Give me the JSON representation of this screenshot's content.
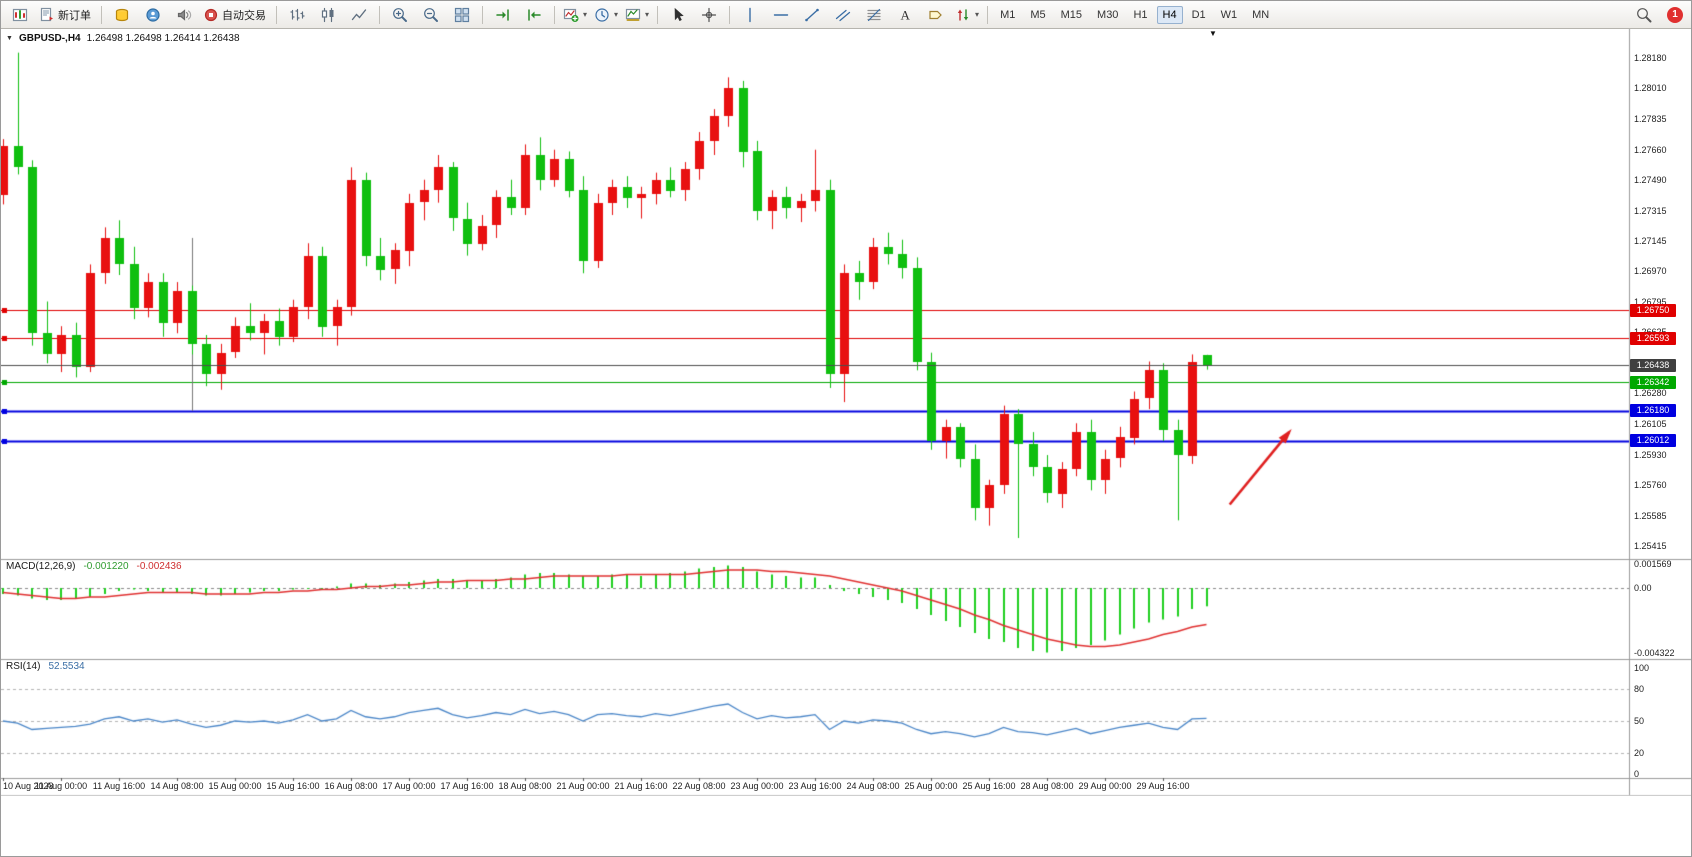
{
  "colors": {
    "accent_red": "#e00000",
    "accent_green": "#00a800",
    "accent_blue": "#0000e0",
    "current_line": "#4d4d4d",
    "panel_divider": "#9a9a9a"
  },
  "toolbar": {
    "groups": [
      {
        "items": [
          {
            "name": "charts-window-button",
            "icon": "charts-window-icon"
          },
          {
            "name": "new-order-button",
            "icon": "new-order-icon",
            "label": "新订单"
          }
        ]
      },
      {
        "items": [
          {
            "name": "history-center-button",
            "icon": "history-icon"
          },
          {
            "name": "community-button",
            "icon": "community-icon"
          },
          {
            "name": "alerts-button",
            "icon": "alerts-icon"
          },
          {
            "name": "auto-trading-button",
            "icon": "autotrade-icon",
            "label": "自动交易"
          }
        ]
      },
      {
        "items": [
          {
            "name": "bar-chart-button",
            "icon": "bar-chart-icon"
          },
          {
            "name": "candlestick-chart-button",
            "icon": "candlestick-chart-icon"
          },
          {
            "name": "line-chart-button",
            "icon": "line-chart-icon"
          }
        ]
      },
      {
        "items": [
          {
            "name": "zoom-in-button",
            "icon": "zoom-in-icon"
          },
          {
            "name": "zoom-out-button",
            "icon": "zoom-out-icon"
          },
          {
            "name": "tile-windows-button",
            "icon": "tile-windows-icon"
          }
        ]
      },
      {
        "items": [
          {
            "name": "auto-scroll-button",
            "icon": "auto-scroll-icon"
          },
          {
            "name": "chart-shift-button",
            "icon": "chart-shift-icon"
          }
        ]
      },
      {
        "items": [
          {
            "name": "indicators-button",
            "icon": "indicators-icon",
            "dropdown": true
          },
          {
            "name": "periods-button",
            "icon": "periods-icon",
            "dropdown": true
          },
          {
            "name": "templates-button",
            "icon": "templates-icon",
            "dropdown": true
          }
        ]
      },
      {
        "items": [
          {
            "name": "cursor-button",
            "icon": "cursor-icon"
          },
          {
            "name": "crosshair-button",
            "icon": "crosshair-icon"
          }
        ]
      },
      {
        "items": [
          {
            "name": "vertical-line-button",
            "icon": "vertical-line-icon"
          },
          {
            "name": "horizontal-line-button",
            "icon": "horizontal-line-icon"
          },
          {
            "name": "trendline-button",
            "icon": "trendline-icon"
          },
          {
            "name": "channel-button",
            "icon": "channel-icon"
          },
          {
            "name": "fibonacci-button",
            "icon": "fibonacci-icon"
          },
          {
            "name": "text-button",
            "icon": "text-icon"
          },
          {
            "name": "label-button",
            "icon": "label-icon"
          },
          {
            "name": "arrows-button",
            "icon": "arrows-icon",
            "dropdown": true
          }
        ]
      }
    ],
    "timeframes": [
      "M1",
      "M5",
      "M15",
      "M30",
      "H1",
      "H4",
      "D1",
      "W1",
      "MN"
    ],
    "active_timeframe": "H4",
    "right": {
      "search_icon": "search-icon",
      "notification_count": "1"
    }
  },
  "chart": {
    "symbol_period": "GBPUSD-,H4",
    "ohlc_line": "1.26498 1.26498 1.26414 1.26438",
    "collapse_icon": "▼",
    "shift_marker_icon": "▼"
  },
  "chart_data": {
    "type": "candlestick",
    "symbol": "GBPUSD-",
    "period": "H4",
    "main": {
      "up_color": "#e81010",
      "down_color": "#0fbf0f",
      "price_axis": {
        "p_top": 1.28344,
        "p_bottom": 1.25341,
        "ticks": [
          "1.28180",
          "1.28010",
          "1.27835",
          "1.27660",
          "1.27490",
          "1.27315",
          "1.27145",
          "1.26970",
          "1.26795",
          "1.26625",
          "1.26450",
          "1.26280",
          "1.26105",
          "1.25930",
          "1.25760",
          "1.25585",
          "1.25415"
        ]
      },
      "candles": [
        [
          1.274,
          1.2772,
          1.2735,
          1.2768
        ],
        [
          1.2768,
          1.2821,
          1.2752,
          1.2756
        ],
        [
          1.2756,
          1.276,
          1.2655,
          1.2662
        ],
        [
          1.2662,
          1.268,
          1.2645,
          1.265
        ],
        [
          1.265,
          1.2666,
          1.264,
          1.2661
        ],
        [
          1.2661,
          1.2668,
          1.2637,
          1.2643
        ],
        [
          1.2643,
          1.2701,
          1.264,
          1.2696
        ],
        [
          1.2696,
          1.2722,
          1.269,
          1.2716
        ],
        [
          1.2716,
          1.2726,
          1.2695,
          1.2701
        ],
        [
          1.2701,
          1.2711,
          1.267,
          1.2676
        ],
        [
          1.2676,
          1.2696,
          1.2671,
          1.2691
        ],
        [
          1.2691,
          1.2696,
          1.266,
          1.2668
        ],
        [
          1.2668,
          1.2691,
          1.2662,
          1.2686
        ],
        [
          1.2686,
          1.2689,
          1.265,
          1.2656
        ],
        [
          1.2656,
          1.2661,
          1.2632,
          1.2639
        ],
        [
          1.2639,
          1.2656,
          1.263,
          1.2651
        ],
        [
          1.2651,
          1.2671,
          1.2648,
          1.2666
        ],
        [
          1.2666,
          1.2679,
          1.2658,
          1.2662
        ],
        [
          1.2662,
          1.2673,
          1.265,
          1.2669
        ],
        [
          1.2669,
          1.2676,
          1.2655,
          1.266
        ],
        [
          1.266,
          1.2681,
          1.2657,
          1.2677
        ],
        [
          1.2677,
          1.2713,
          1.267,
          1.2706
        ],
        [
          1.2706,
          1.2711,
          1.266,
          1.2666
        ],
        [
          1.2666,
          1.2681,
          1.2655,
          1.2677
        ],
        [
          1.2677,
          1.2756,
          1.2672,
          1.2749
        ],
        [
          1.2749,
          1.2753,
          1.27,
          1.2706
        ],
        [
          1.2706,
          1.2716,
          1.2692,
          1.2698
        ],
        [
          1.2698,
          1.2713,
          1.269,
          1.2709
        ],
        [
          1.2709,
          1.2741,
          1.27,
          1.2736
        ],
        [
          1.2736,
          1.2749,
          1.2726,
          1.2743
        ],
        [
          1.2743,
          1.2763,
          1.2736,
          1.2756
        ],
        [
          1.2756,
          1.2759,
          1.272,
          1.2727
        ],
        [
          1.2727,
          1.2736,
          1.2706,
          1.2713
        ],
        [
          1.2713,
          1.2729,
          1.2709,
          1.2723
        ],
        [
          1.2723,
          1.2743,
          1.2716,
          1.2739
        ],
        [
          1.2739,
          1.2749,
          1.2729,
          1.2733
        ],
        [
          1.2733,
          1.2769,
          1.2729,
          1.2763
        ],
        [
          1.2763,
          1.2773,
          1.2743,
          1.2749
        ],
        [
          1.2749,
          1.2766,
          1.2745,
          1.2761
        ],
        [
          1.2761,
          1.2765,
          1.2739,
          1.2743
        ],
        [
          1.2743,
          1.2751,
          1.2696,
          1.2703
        ],
        [
          1.2703,
          1.2741,
          1.2699,
          1.2736
        ],
        [
          1.2736,
          1.2749,
          1.2729,
          1.2745
        ],
        [
          1.2745,
          1.2751,
          1.2733,
          1.2739
        ],
        [
          1.2739,
          1.2745,
          1.2727,
          1.2741
        ],
        [
          1.2741,
          1.2753,
          1.2735,
          1.2749
        ],
        [
          1.2749,
          1.2756,
          1.2739,
          1.2743
        ],
        [
          1.2743,
          1.2759,
          1.2737,
          1.2755
        ],
        [
          1.2755,
          1.2776,
          1.2749,
          1.2771
        ],
        [
          1.2771,
          1.2789,
          1.2763,
          1.2785
        ],
        [
          1.2785,
          1.2807,
          1.2779,
          1.2801
        ],
        [
          1.2801,
          1.2805,
          1.2756,
          1.2765
        ],
        [
          1.2765,
          1.2771,
          1.2726,
          1.2731
        ],
        [
          1.2731,
          1.2743,
          1.2721,
          1.2739
        ],
        [
          1.2739,
          1.2745,
          1.2727,
          1.2733
        ],
        [
          1.2733,
          1.2741,
          1.2725,
          1.2737
        ],
        [
          1.2737,
          1.2766,
          1.2731,
          1.2743
        ],
        [
          1.2743,
          1.2749,
          1.2631,
          1.2639
        ],
        [
          1.2639,
          1.2701,
          1.2623,
          1.2696
        ],
        [
          1.2696,
          1.2703,
          1.2681,
          1.2691
        ],
        [
          1.2691,
          1.2716,
          1.2687,
          1.2711
        ],
        [
          1.2711,
          1.2719,
          1.2701,
          1.2707
        ],
        [
          1.2707,
          1.2715,
          1.2693,
          1.2699
        ],
        [
          1.2699,
          1.2705,
          1.2641,
          1.2646
        ],
        [
          1.2646,
          1.2651,
          1.2596,
          1.2601
        ],
        [
          1.2601,
          1.2613,
          1.2591,
          1.2609
        ],
        [
          1.2609,
          1.2611,
          1.2586,
          1.2591
        ],
        [
          1.2591,
          1.2599,
          1.2556,
          1.2563
        ],
        [
          1.2563,
          1.2579,
          1.2553,
          1.2576
        ],
        [
          1.2576,
          1.2621,
          1.2571,
          1.2616
        ],
        [
          1.2616,
          1.2619,
          1.2546,
          1.2599
        ],
        [
          1.2599,
          1.2606,
          1.2581,
          1.2586
        ],
        [
          1.2586,
          1.2593,
          1.2566,
          1.2571
        ],
        [
          1.2571,
          1.2589,
          1.2563,
          1.2585
        ],
        [
          1.2585,
          1.2611,
          1.2581,
          1.2606
        ],
        [
          1.2606,
          1.2613,
          1.2573,
          1.2579
        ],
        [
          1.2579,
          1.2596,
          1.2571,
          1.2591
        ],
        [
          1.2591,
          1.2609,
          1.2586,
          1.2603
        ],
        [
          1.2603,
          1.2629,
          1.2599,
          1.2625
        ],
        [
          1.2625,
          1.2646,
          1.2619,
          1.2641
        ],
        [
          1.2641,
          1.2645,
          1.2601,
          1.2607
        ],
        [
          1.2607,
          1.2613,
          1.2556,
          1.2593
        ],
        [
          1.2593,
          1.265,
          1.2588,
          1.2646
        ],
        [
          1.26498,
          1.26498,
          1.26414,
          1.26438
        ]
      ],
      "time_labels": [
        "10 Aug 2023",
        "11 Aug 00:00",
        "11 Aug 16:00",
        "14 Aug 08:00",
        "15 Aug 00:00",
        "15 Aug 16:00",
        "16 Aug 08:00",
        "17 Aug 00:00",
        "17 Aug 16:00",
        "18 Aug 08:00",
        "21 Aug 00:00",
        "21 Aug 16:00",
        "22 Aug 08:00",
        "23 Aug 00:00",
        "23 Aug 16:00",
        "24 Aug 08:00",
        "25 Aug 00:00",
        "25 Aug 16:00",
        "28 Aug 08:00",
        "29 Aug 00:00",
        "29 Aug 16:00"
      ],
      "label_every": 4,
      "lines": [
        {
          "price": 1.2675,
          "text": "1.26750",
          "color": "#e00000",
          "width": 1
        },
        {
          "price": 1.26593,
          "text": "1.26593",
          "color": "#e00000",
          "width": 1
        },
        {
          "price": 1.26342,
          "text": "1.26342",
          "color": "#00a800",
          "width": 1
        },
        {
          "price": 1.2618,
          "text": "1.26180",
          "color": "#0000e0",
          "width": 2
        },
        {
          "price": 1.26012,
          "text": "1.26012",
          "color": "#0000e0",
          "width": 2
        }
      ],
      "current_price": {
        "price": 1.26438,
        "text": "1.26438",
        "line_color": "#4d4d4d",
        "tag_color": "#3f3f3f"
      },
      "vertical_line": {
        "bar": 13,
        "price_from": 1.2716,
        "price_to": 1.2618,
        "color": "#777777"
      },
      "arrow": {
        "from_bar": 84.6,
        "from_price": 1.2565,
        "to_bar": 88.7,
        "to_price": 1.2606,
        "color": "#e02020"
      }
    },
    "macd": {
      "label": "MACD(12,26,9)",
      "value1": "-0.001220",
      "value2": "-0.002436",
      "histogram_color": "#1fcf1f",
      "signal_color": "#e03030",
      "v_top": 0.0018,
      "v_bottom": -0.0046,
      "axis_labels": [
        {
          "text": "0.001569",
          "value": 0.001569
        },
        {
          "text": "0.00",
          "value": 0
        },
        {
          "text": "-0.004322",
          "value": -0.004322
        }
      ],
      "histogram": [
        -0.0004,
        -0.0005,
        -0.0007,
        -0.0008,
        -0.0008,
        -0.0007,
        -0.0006,
        -0.0004,
        -0.0002,
        -0.0001,
        -0.0002,
        -0.0003,
        -0.0003,
        -0.0004,
        -0.0005,
        -0.0005,
        -0.0004,
        -0.0003,
        -0.0002,
        -0.0002,
        -0.0001,
        0,
        0,
        0.0001,
        0.0003,
        0.0003,
        0.0002,
        0.0003,
        0.0004,
        0.0005,
        0.0006,
        0.0006,
        0.0005,
        0.0005,
        0.0006,
        0.0007,
        0.0009,
        0.001,
        0.001,
        0.0009,
        0.0008,
        0.0008,
        0.0009,
        0.0009,
        0.0008,
        0.0009,
        0.001,
        0.0011,
        0.0013,
        0.0014,
        0.0015,
        0.0014,
        0.0011,
        0.0009,
        0.0008,
        0.0007,
        0.0007,
        0.0002,
        -0.0002,
        -0.0004,
        -0.0006,
        -0.0008,
        -0.001,
        -0.0014,
        -0.0018,
        -0.0022,
        -0.0026,
        -0.003,
        -0.0034,
        -0.0036,
        -0.004,
        -0.0042,
        -0.0043,
        -0.0042,
        -0.004,
        -0.0038,
        -0.0035,
        -0.0031,
        -0.0027,
        -0.0023,
        -0.0021,
        -0.0019,
        -0.0014,
        -0.00122
      ],
      "signal": [
        -0.0003,
        -0.0004,
        -0.0005,
        -0.0006,
        -0.0007,
        -0.0007,
        -0.0006,
        -0.0006,
        -0.0005,
        -0.0004,
        -0.0003,
        -0.0003,
        -0.0003,
        -0.0003,
        -0.0004,
        -0.0004,
        -0.0004,
        -0.0004,
        -0.0003,
        -0.0003,
        -0.0002,
        -0.0002,
        -0.0001,
        -0.0001,
        0,
        0.0001,
        0.0001,
        0.0002,
        0.0002,
        0.0003,
        0.0004,
        0.0004,
        0.0005,
        0.0005,
        0.0005,
        0.0006,
        0.0006,
        0.0007,
        0.0008,
        0.0008,
        0.0008,
        0.0008,
        0.0008,
        0.0009,
        0.0009,
        0.0009,
        0.0009,
        0.0009,
        0.001,
        0.0011,
        0.0012,
        0.0012,
        0.0012,
        0.0011,
        0.0011,
        0.001,
        0.0009,
        0.0008,
        0.0006,
        0.0004,
        0.0002,
        0,
        -0.0002,
        -0.0005,
        -0.0008,
        -0.0011,
        -0.0014,
        -0.0018,
        -0.0021,
        -0.0025,
        -0.0028,
        -0.0031,
        -0.0034,
        -0.0036,
        -0.0038,
        -0.0039,
        -0.0039,
        -0.0038,
        -0.0036,
        -0.0034,
        -0.0031,
        -0.0029,
        -0.0026,
        -0.002436
      ]
    },
    "rsi": {
      "label": "RSI(14)",
      "value": "52.5534",
      "line_color": "#4a86c8",
      "levels": [
        80,
        50,
        20
      ],
      "axis_labels": [
        {
          "text": "100",
          "value": 100
        },
        {
          "text": "80",
          "value": 80
        },
        {
          "text": "50",
          "value": 50
        },
        {
          "text": "20",
          "value": 20
        },
        {
          "text": "0",
          "value": 0
        }
      ],
      "series": [
        50,
        48,
        42,
        43,
        44,
        45,
        47,
        52,
        54,
        50,
        52,
        49,
        51,
        47,
        44,
        46,
        50,
        49,
        50,
        48,
        51,
        56,
        50,
        52,
        60,
        54,
        52,
        54,
        58,
        60,
        62,
        56,
        53,
        55,
        58,
        56,
        61,
        57,
        59,
        56,
        50,
        56,
        57,
        55,
        54,
        57,
        55,
        58,
        61,
        64,
        66,
        58,
        52,
        55,
        53,
        54,
        56,
        42,
        50,
        48,
        51,
        50,
        48,
        42,
        38,
        40,
        38,
        35,
        38,
        44,
        40,
        39,
        37,
        40,
        43,
        38,
        41,
        44,
        46,
        48,
        44,
        42,
        52,
        52.5534
      ]
    }
  }
}
